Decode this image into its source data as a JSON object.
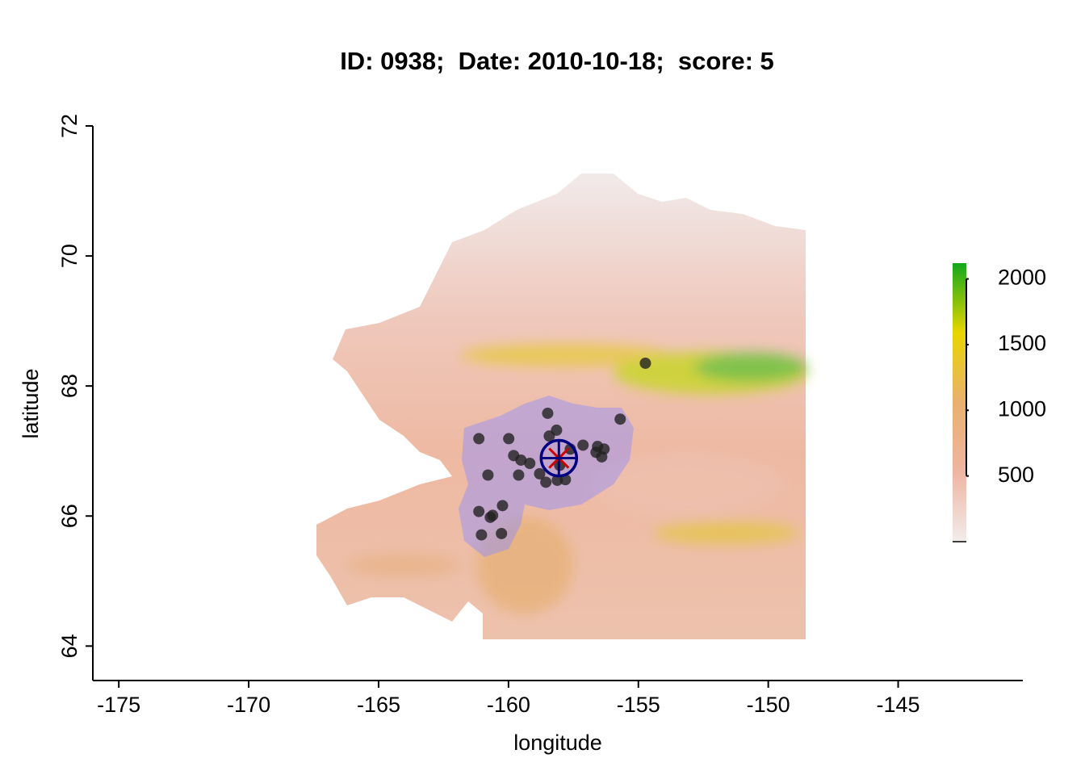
{
  "chart_data": {
    "type": "scatter",
    "title": "ID: 0938;  Date: 2010-10-18;  score: 5",
    "x_label": "longitude",
    "y_label": "latitude",
    "xlim": [
      -176,
      -140.2
    ],
    "ylim": [
      63.47,
      72
    ],
    "xticks": [
      -175,
      -170,
      -165,
      -160,
      -155,
      -150,
      -145
    ],
    "yticks": [
      64,
      66,
      68,
      70,
      72
    ],
    "points": {
      "color": "#222222",
      "x": [
        -154.73,
        -155.7,
        -158.49,
        -161.14,
        -159.99,
        -158.43,
        -158.15,
        -159.8,
        -159.52,
        -159.18,
        -160.79,
        -159.61,
        -158.8,
        -158.56,
        -158.12,
        -157.81,
        -158.03,
        -157.13,
        -156.63,
        -156.41,
        -156.57,
        -156.32,
        -161.14,
        -160.23,
        -160.7,
        -160.61,
        -161.04,
        -160.27,
        -157.62
      ],
      "y": [
        68.35,
        67.49,
        67.58,
        67.19,
        67.19,
        67.23,
        67.32,
        66.93,
        66.86,
        66.81,
        66.63,
        66.63,
        66.65,
        66.52,
        66.55,
        66.56,
        66.78,
        67.09,
        66.98,
        66.91,
        67.07,
        67.03,
        66.07,
        66.16,
        65.98,
        66.01,
        65.71,
        65.73,
        67.03
      ]
    },
    "center": {
      "x": -158.06,
      "y": 66.89,
      "color": "#000080"
    },
    "colorbar": {
      "lim": [
        0,
        2120
      ],
      "ticks": [
        500,
        1000,
        1500,
        2000
      ],
      "colors": [
        "#f2ecec",
        "#eeb5a0",
        "#e9b070",
        "#e8d500",
        "#12a81a"
      ]
    }
  }
}
